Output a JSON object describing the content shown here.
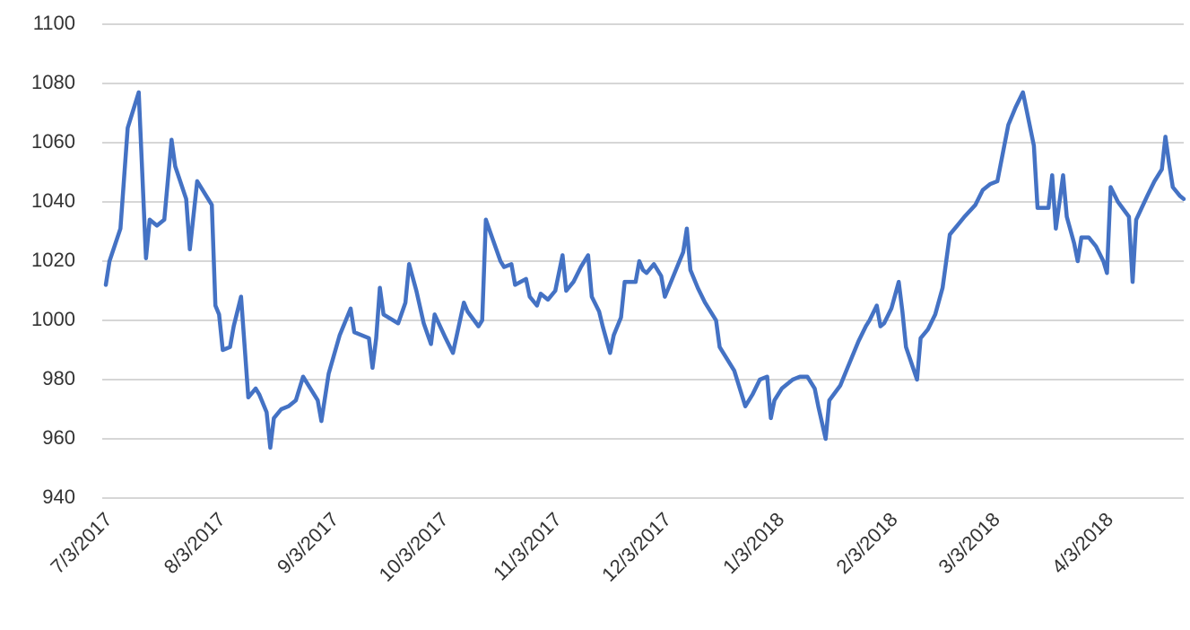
{
  "chart_data": {
    "type": "line",
    "x": [
      "7/3/2017",
      "7/4/2017",
      "7/7/2017",
      "7/9/2017",
      "7/12/2017",
      "7/14/2017",
      "7/15/2017",
      "7/17/2017",
      "7/19/2017",
      "7/21/2017",
      "7/22/2017",
      "7/25/2017",
      "7/26/2017",
      "7/28/2017",
      "8/1/2017",
      "8/2/2017",
      "8/3/2017",
      "8/4/2017",
      "8/6/2017",
      "8/7/2017",
      "8/9/2017",
      "8/11/2017",
      "8/13/2017",
      "8/14/2017",
      "8/16/2017",
      "8/17/2017",
      "8/18/2017",
      "8/20/2017",
      "8/22/2017",
      "8/24/2017",
      "8/26/2017",
      "8/28/2017",
      "8/30/2017",
      "8/31/2017",
      "9/2/2017",
      "9/5/2017",
      "9/8/2017",
      "9/9/2017",
      "9/13/2017",
      "9/14/2017",
      "9/15/2017",
      "9/16/2017",
      "9/17/2017",
      "9/21/2017",
      "9/23/2017",
      "9/24/2017",
      "9/26/2017",
      "9/28/2017",
      "9/30/2017",
      "10/1/2017",
      "10/4/2017",
      "10/6/2017",
      "10/9/2017",
      "10/10/2017",
      "10/13/2017",
      "10/14/2017",
      "10/15/2017",
      "10/17/2017",
      "10/19/2017",
      "10/20/2017",
      "10/22/2017",
      "10/23/2017",
      "10/26/2017",
      "10/27/2017",
      "10/29/2017",
      "10/30/2017",
      "11/1/2017",
      "11/3/2017",
      "11/5/2017",
      "11/6/2017",
      "11/8/2017",
      "11/10/2017",
      "11/12/2017",
      "11/13/2017",
      "11/15/2017",
      "11/16/2017",
      "11/18/2017",
      "11/19/2017",
      "11/21/2017",
      "11/22/2017",
      "11/25/2017",
      "11/26/2017",
      "11/27/2017",
      "11/28/2017",
      "11/30/2017",
      "12/2/2017",
      "12/3/2017",
      "12/5/2017",
      "12/7/2017",
      "12/8/2017",
      "12/9/2017",
      "12/10/2017",
      "12/12/2017",
      "12/14/2017",
      "12/17/2017",
      "12/18/2017",
      "12/20/2017",
      "12/22/2017",
      "12/25/2017",
      "12/27/2017",
      "12/29/2017",
      "12/31/2017",
      "1/1/2018",
      "1/2/2018",
      "1/4/2018",
      "1/7/2018",
      "1/9/2018",
      "1/11/2018",
      "1/13/2018",
      "1/14/2018",
      "1/16/2018",
      "1/17/2018",
      "1/20/2018",
      "1/22/2018",
      "1/25/2018",
      "1/27/2018",
      "1/28/2018",
      "1/30/2018",
      "1/31/2018",
      "2/1/2018",
      "2/3/2018",
      "2/5/2018",
      "2/6/2018",
      "2/7/2018",
      "2/10/2018",
      "2/11/2018",
      "2/13/2018",
      "2/15/2018",
      "2/17/2018",
      "2/19/2018",
      "2/21/2018",
      "2/23/2018",
      "2/26/2018",
      "2/28/2018",
      "3/2/2018",
      "3/4/2018",
      "3/7/2018",
      "3/9/2018",
      "3/11/2018",
      "3/14/2018",
      "3/15/2018",
      "3/18/2018",
      "3/19/2018",
      "3/20/2018",
      "3/22/2018",
      "3/23/2018",
      "3/25/2018",
      "3/26/2018",
      "3/27/2018",
      "3/29/2018",
      "3/31/2018",
      "4/2/2018",
      "4/3/2018",
      "4/4/2018",
      "4/6/2018",
      "4/9/2018",
      "4/10/2018",
      "4/11/2018",
      "4/14/2018",
      "4/16/2018",
      "4/18/2018",
      "4/19/2018",
      "4/20/2018",
      "4/21/2018",
      "4/23/2018",
      "4/24/2018"
    ],
    "series": [
      {
        "color": "#4472c4",
        "values": [
          1012,
          1020,
          1031,
          1065,
          1077,
          1021,
          1034,
          1032,
          1034,
          1061,
          1052,
          1041,
          1024,
          1047,
          1039,
          1005,
          1002,
          990,
          991,
          998,
          1008,
          974,
          977,
          975,
          969,
          957,
          967,
          970,
          971,
          973,
          981,
          977,
          973,
          966,
          982,
          995,
          1004,
          996,
          994,
          984,
          994,
          1011,
          1002,
          999,
          1006,
          1019,
          1010,
          999,
          992,
          1002,
          994,
          989,
          1006,
          1003,
          998,
          1000,
          1034,
          1027,
          1020,
          1018,
          1019,
          1012,
          1014,
          1008,
          1005,
          1009,
          1007,
          1010,
          1022,
          1010,
          1013,
          1018,
          1022,
          1008,
          1003,
          998,
          989,
          995,
          1001,
          1013,
          1013,
          1020,
          1017,
          1016,
          1019,
          1015,
          1008,
          1014,
          1020,
          1023,
          1031,
          1017,
          1011,
          1006,
          1000,
          991,
          987,
          983,
          971,
          975,
          980,
          981,
          967,
          973,
          977,
          980,
          981,
          981,
          977,
          971,
          960,
          973,
          978,
          984,
          993,
          998,
          1000,
          1005,
          998,
          999,
          1004,
          1013,
          1003,
          991,
          980,
          994,
          997,
          1002,
          1011,
          1029,
          1032,
          1035,
          1039,
          1044,
          1046,
          1047,
          1066,
          1072,
          1077,
          1059,
          1038,
          1038,
          1049,
          1031,
          1049,
          1035,
          1026,
          1020,
          1028,
          1028,
          1025,
          1020,
          1016,
          1045,
          1040,
          1035,
          1013,
          1034,
          1042,
          1047,
          1051,
          1062,
          1053,
          1045,
          1042,
          1041
        ]
      }
    ],
    "xlim": [
      "7/3/2017",
      "4/24/2018"
    ],
    "xticks": [
      "7/3/2017",
      "8/3/2017",
      "9/3/2017",
      "10/3/2017",
      "11/3/2017",
      "12/3/2017",
      "1/3/2018",
      "2/3/2018",
      "3/3/2018",
      "4/3/2018"
    ],
    "ylim": [
      940,
      1100
    ],
    "yticks": [
      940,
      960,
      980,
      1000,
      1020,
      1040,
      1060,
      1080,
      1100
    ],
    "grid": true
  }
}
